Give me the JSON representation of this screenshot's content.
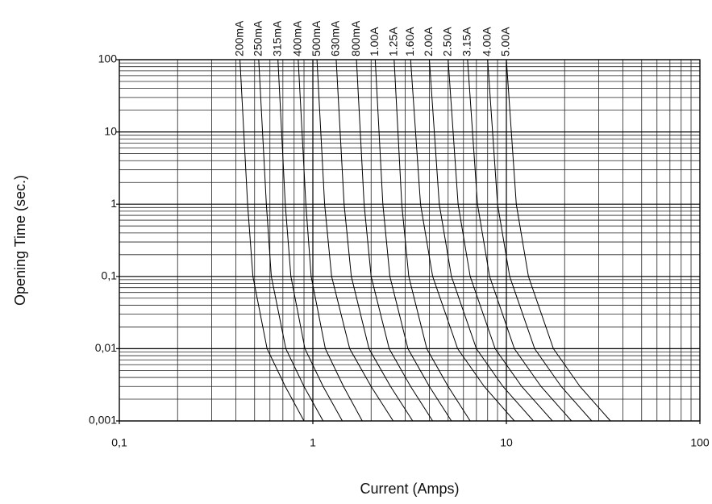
{
  "chart_data": {
    "type": "line",
    "x_label": "Current (Amps)",
    "y_label": "Opening Time (sec.)",
    "x_log": true,
    "y_log": true,
    "grid": true,
    "minor_grid": true,
    "color": "#000000",
    "xlim": [
      0.1,
      100
    ],
    "xticks": [
      {
        "value": 0.1,
        "label": "0,1"
      },
      1,
      10,
      100
    ],
    "ylim": [
      0.001,
      100
    ],
    "yticks": [
      {
        "value": 0.001,
        "label": "0,001"
      },
      {
        "value": 0.01,
        "label": "0,01"
      },
      {
        "value": 0.1,
        "label": "0,1"
      },
      1,
      10,
      100
    ],
    "series": [
      {
        "name": "200mA",
        "x": [
          0.42,
          0.46,
          0.49,
          0.58,
          0.72,
          0.9
        ],
        "values": [
          100,
          1,
          0.1,
          0.01,
          0.003,
          0.001
        ]
      },
      {
        "name": "250mA",
        "x": [
          0.525,
          0.575,
          0.61,
          0.725,
          0.9,
          1.13
        ],
        "values": [
          100,
          1,
          0.1,
          0.01,
          0.003,
          0.001
        ]
      },
      {
        "name": "315mA",
        "x": [
          0.66,
          0.72,
          0.77,
          0.91,
          1.13,
          1.42
        ],
        "values": [
          100,
          1,
          0.1,
          0.01,
          0.003,
          0.001
        ]
      },
      {
        "name": "400mA",
        "x": [
          0.84,
          0.92,
          0.98,
          1.16,
          1.44,
          1.8
        ],
        "values": [
          100,
          1,
          0.1,
          0.01,
          0.003,
          0.001
        ]
      },
      {
        "name": "500mA",
        "x": [
          1.05,
          1.15,
          1.25,
          1.55,
          2.0,
          2.6
        ],
        "values": [
          100,
          1,
          0.1,
          0.01,
          0.003,
          0.001
        ]
      },
      {
        "name": "630mA",
        "x": [
          1.32,
          1.45,
          1.58,
          1.95,
          2.52,
          3.28
        ],
        "values": [
          100,
          1,
          0.1,
          0.01,
          0.003,
          0.001
        ]
      },
      {
        "name": "800mA",
        "x": [
          1.68,
          1.84,
          2.0,
          2.48,
          3.2,
          4.16
        ],
        "values": [
          100,
          1,
          0.1,
          0.01,
          0.003,
          0.001
        ]
      },
      {
        "name": "1.00A",
        "x": [
          2.1,
          2.3,
          2.5,
          3.1,
          4.0,
          5.2
        ],
        "values": [
          100,
          1,
          0.1,
          0.01,
          0.003,
          0.001
        ]
      },
      {
        "name": "1.25A",
        "x": [
          2.63,
          2.88,
          3.13,
          3.88,
          5.0,
          6.5
        ],
        "values": [
          100,
          1,
          0.1,
          0.01,
          0.003,
          0.001
        ]
      },
      {
        "name": "1.60A",
        "x": [
          3.2,
          3.6,
          4.16,
          5.6,
          7.68,
          11.0
        ],
        "values": [
          100,
          1,
          0.1,
          0.01,
          0.003,
          0.001
        ]
      },
      {
        "name": "2.00A",
        "x": [
          4.0,
          4.5,
          5.2,
          7.0,
          9.6,
          13.8
        ],
        "values": [
          100,
          1,
          0.1,
          0.01,
          0.003,
          0.001
        ]
      },
      {
        "name": "2.50A",
        "x": [
          5.0,
          5.63,
          6.5,
          8.75,
          12.0,
          17.3
        ],
        "values": [
          100,
          1,
          0.1,
          0.01,
          0.003,
          0.001
        ]
      },
      {
        "name": "3.15A",
        "x": [
          6.3,
          7.09,
          8.19,
          11.0,
          15.1,
          21.7
        ],
        "values": [
          100,
          1,
          0.1,
          0.01,
          0.003,
          0.001
        ]
      },
      {
        "name": "4.00A",
        "x": [
          8.0,
          9.0,
          10.4,
          14.0,
          19.2,
          27.6
        ],
        "values": [
          100,
          1,
          0.1,
          0.01,
          0.003,
          0.001
        ]
      },
      {
        "name": "5.00A",
        "x": [
          10.0,
          11.25,
          13.0,
          17.5,
          24.0,
          34.5
        ],
        "values": [
          100,
          1,
          0.1,
          0.01,
          0.003,
          0.001
        ]
      }
    ]
  }
}
